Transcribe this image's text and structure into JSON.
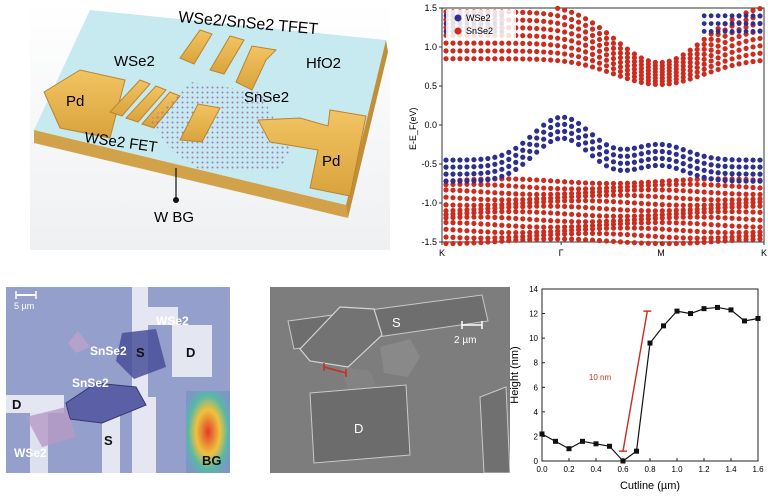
{
  "device": {
    "labels": {
      "tfet": "WSe2/SnSe2 TFET",
      "wse2": "WSe2",
      "pd_left": "Pd",
      "snse2": "SnSe2",
      "hfo2": "HfO2",
      "fet": "WSe2 FET",
      "pd_right": "Pd",
      "wbg": "W BG"
    }
  },
  "band": {
    "ylabel": "E-E_F(eV)",
    "yticks": [
      "1.5",
      "1.0",
      "0.5",
      "0.0",
      "-0.5",
      "-1.0",
      "-1.5"
    ],
    "xticks": [
      "K",
      "Γ",
      "M",
      "K"
    ],
    "legend": [
      {
        "name": "WSe2",
        "color": "#2b2f8f"
      },
      {
        "name": "SnSe2",
        "color": "#cc2b1d"
      }
    ]
  },
  "optical": {
    "scale": "5 µm",
    "labels": {
      "wse2_top": "WSe2",
      "snse2_top": "SnSe2",
      "s_top": "S",
      "d_top": "D",
      "snse2_mid": "SnSe2",
      "d_left": "D",
      "s_bottom": "S",
      "wse2_bottom": "WSe2",
      "bg": "BG"
    }
  },
  "sem": {
    "scale": "2 µm",
    "labels": {
      "s": "S",
      "d": "D"
    }
  },
  "chart_data": {
    "type": "line",
    "title": "",
    "xlabel": "Cutline (µm)",
    "ylabel": "Height (nm)",
    "xlim": [
      0.0,
      1.6
    ],
    "ylim": [
      0,
      14
    ],
    "xticks": [
      "0.0",
      "0.2",
      "0.4",
      "0.6",
      "0.8",
      "1.0",
      "1.2",
      "1.4",
      "1.6"
    ],
    "yticks": [
      "0",
      "2",
      "4",
      "6",
      "8",
      "10",
      "12",
      "14"
    ],
    "x": [
      0.0,
      0.1,
      0.2,
      0.3,
      0.4,
      0.5,
      0.6,
      0.7,
      0.8,
      0.9,
      1.0,
      1.1,
      1.2,
      1.3,
      1.4,
      1.5,
      1.6
    ],
    "y": [
      2.2,
      1.6,
      1.0,
      1.6,
      1.4,
      1.2,
      0.0,
      0.8,
      9.6,
      11.0,
      12.2,
      12.0,
      12.4,
      12.5,
      12.3,
      11.4,
      11.6
    ],
    "annotation": {
      "text": "10 nm",
      "color": "#cc2b1d"
    }
  }
}
